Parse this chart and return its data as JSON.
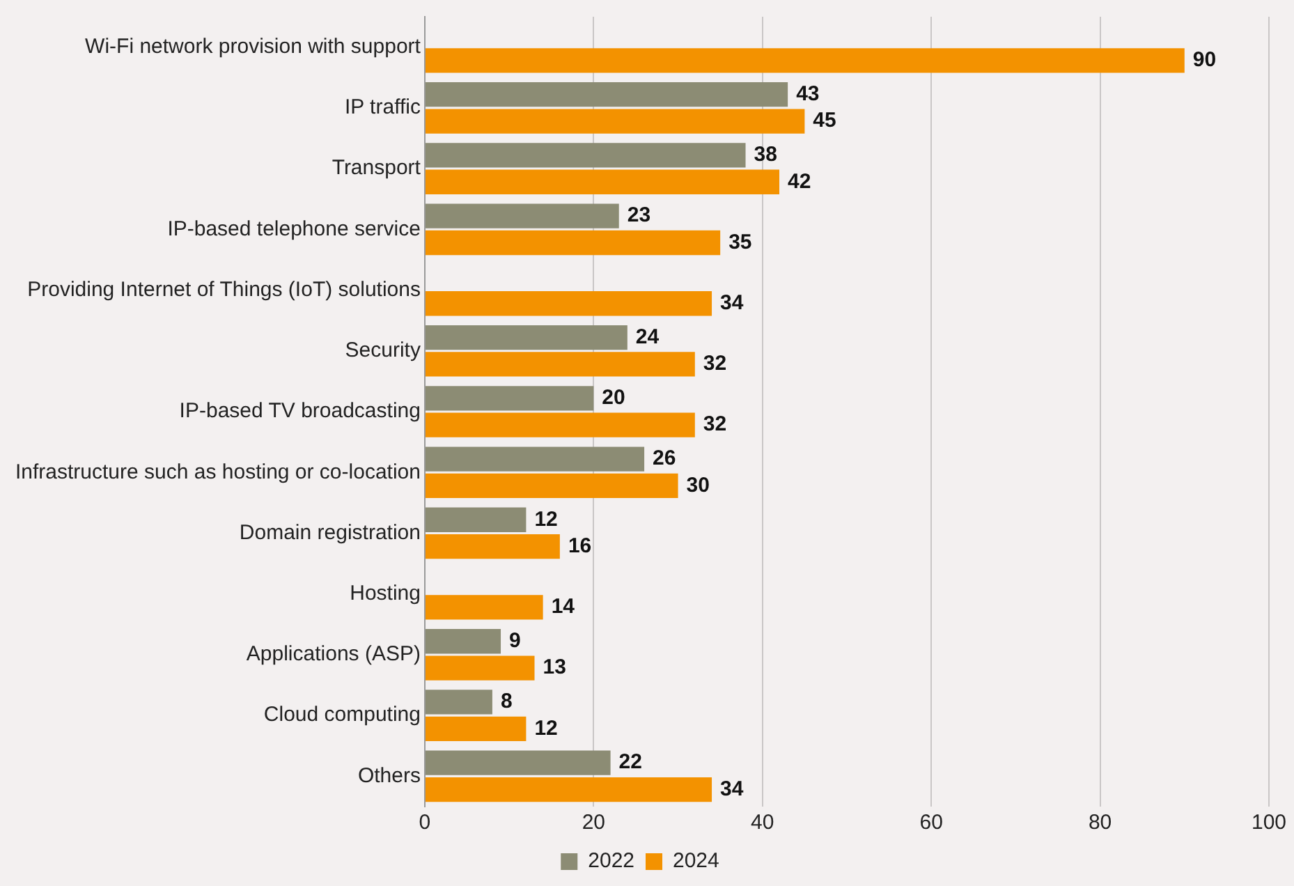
{
  "chart_data": {
    "type": "bar",
    "orientation": "horizontal",
    "categories": [
      "Wi-Fi network provision with support",
      "IP traffic",
      "Transport",
      "IP-based telephone service",
      "Providing Internet of Things (IoT) solutions",
      "Security",
      "IP-based TV broadcasting",
      "Infrastructure such as hosting or co-location",
      "Domain registration",
      "Hosting",
      "Applications (ASP)",
      "Cloud computing",
      "Others"
    ],
    "series": [
      {
        "name": "2022",
        "color": "#8c8c74",
        "values": [
          null,
          43,
          38,
          23,
          null,
          24,
          20,
          26,
          12,
          null,
          9,
          8,
          22
        ]
      },
      {
        "name": "2024",
        "color": "#f39200",
        "values": [
          90,
          45,
          42,
          35,
          34,
          32,
          32,
          30,
          16,
          14,
          13,
          12,
          34
        ]
      }
    ],
    "xlim": [
      0,
      100
    ],
    "xticks": [
      0,
      20,
      40,
      60,
      80,
      100
    ],
    "grid": "x",
    "legend": "bottom",
    "data_labels": true
  }
}
